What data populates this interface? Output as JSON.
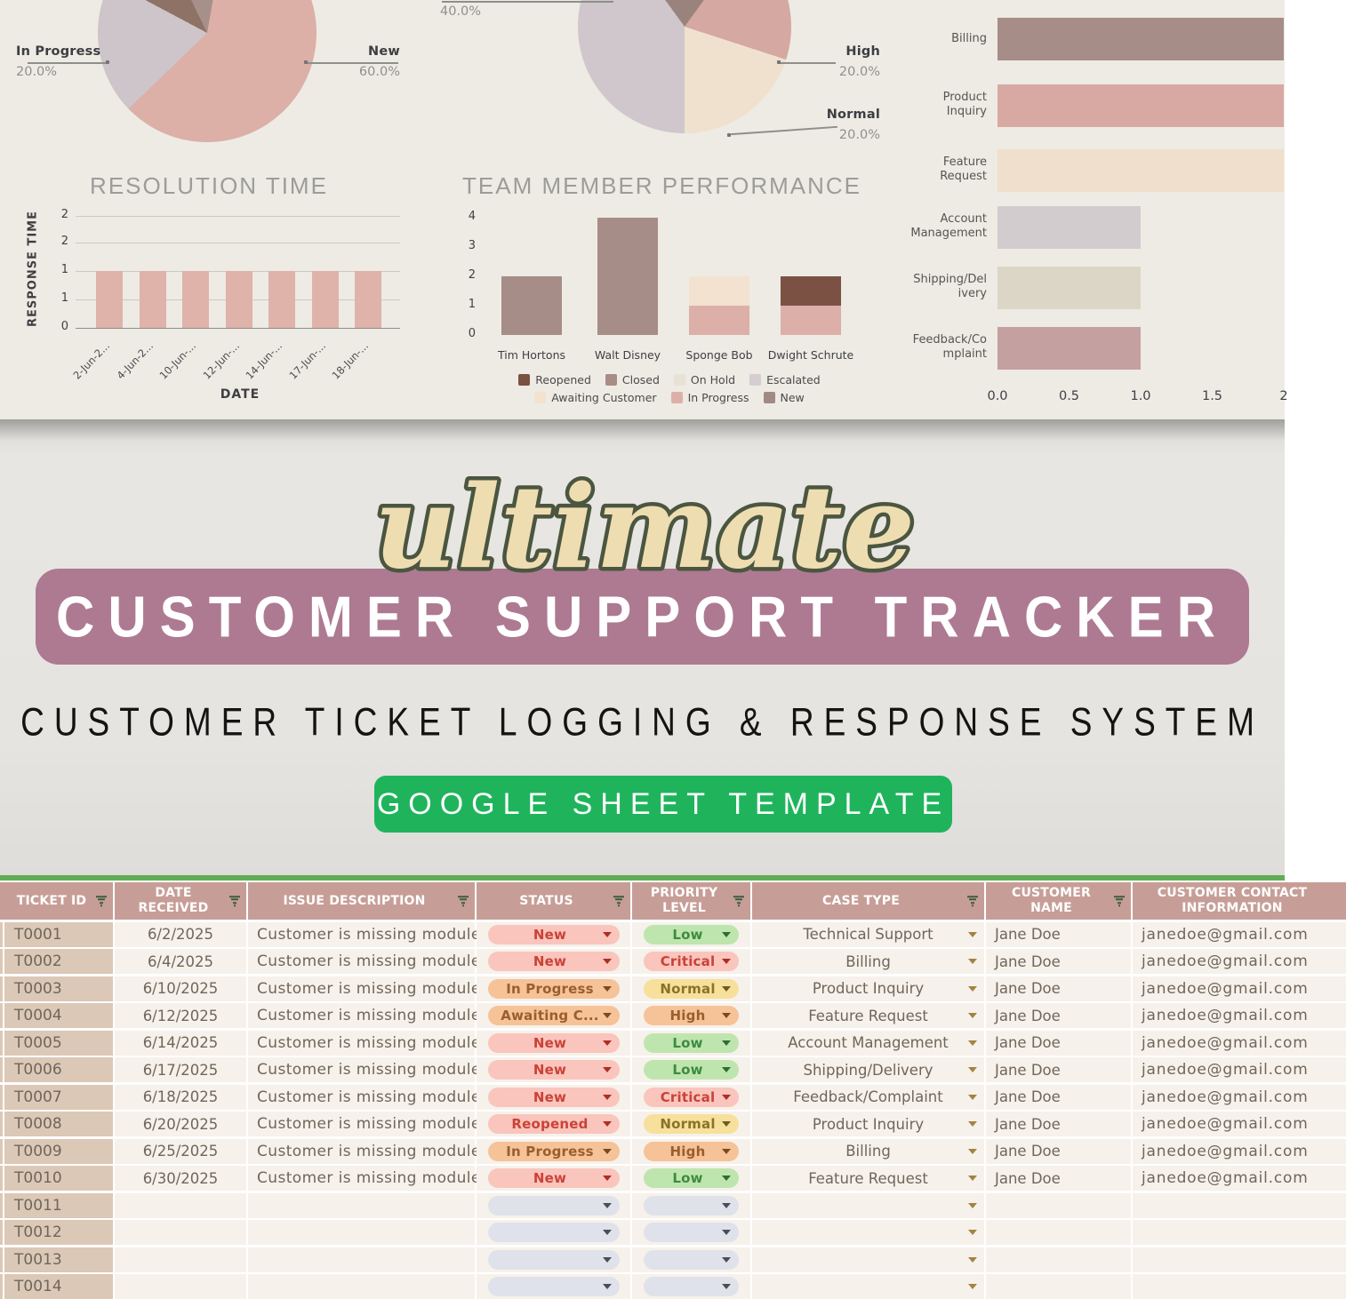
{
  "hero": {
    "script_word": "ultimate",
    "banner_title": "CUSTOMER SUPPORT TRACKER",
    "subtitle": "CUSTOMER TICKET LOGGING & RESPONSE SYSTEM",
    "button_label": "GOOGLE SHEET TEMPLATE",
    "colors": {
      "banner_bg": "#ad7a92",
      "script_fill": "#efddb2",
      "script_stroke": "#4b5640",
      "button_bg": "#1fb45c",
      "subtitle_text": "#141414"
    }
  },
  "chart_data": [
    {
      "type": "pie",
      "name": "ticket-status-distribution",
      "slices": [
        {
          "label": "New",
          "pct": 60,
          "color": "#dcafa7"
        },
        {
          "label": "In Progress",
          "pct": 20,
          "color": "#cdc5c9"
        },
        {
          "label": "",
          "pct": 10,
          "color": "#8d7265"
        },
        {
          "label": "",
          "pct": 10,
          "color": "#a79089"
        }
      ],
      "callouts": [
        {
          "label": "In Progress",
          "pct": "20.0%"
        },
        {
          "label": "New",
          "pct": "60.0%"
        }
      ]
    },
    {
      "type": "bar",
      "title": "RESOLUTION TIME",
      "xlabel": "DATE",
      "ylabel": "RESPONSE TIME",
      "x": [
        "2-Jun-2...",
        "4-Jun-2...",
        "10-Jun-...",
        "12-Jun-...",
        "14-Jun-...",
        "17-Jun-...",
        "18-Jun-..."
      ],
      "values": [
        1,
        1,
        1,
        1,
        1,
        1,
        1
      ],
      "yticks": [
        "2",
        "2",
        "1",
        "1",
        "0"
      ],
      "ylim": [
        0,
        2
      ],
      "bar_color": "#dfb2aa"
    },
    {
      "type": "pie",
      "name": "priority-distribution",
      "slices": [
        {
          "label": "",
          "pct": 20,
          "color": "#9b837d"
        },
        {
          "label": "High",
          "pct": 20,
          "color": "#d5a8a2"
        },
        {
          "label": "Normal",
          "pct": 20,
          "color": "#f0e1ce"
        },
        {
          "label": "",
          "pct": 40,
          "color": "#cfc7cb"
        }
      ],
      "callouts": [
        {
          "label": "",
          "pct": "40.0%"
        },
        {
          "label": "High",
          "pct": "20.0%"
        },
        {
          "label": "Normal",
          "pct": "20.0%"
        }
      ]
    },
    {
      "type": "stacked-bar",
      "title": "TEAM MEMBER PERFORMANCE",
      "categories": [
        "Tim Hortons",
        "Walt Disney",
        "Sponge Bob",
        "Dwight Schrute"
      ],
      "yticks": [
        "4",
        "3",
        "2",
        "1",
        "0"
      ],
      "ylim": [
        0,
        4
      ],
      "bars": [
        [
          {
            "status": "Closed",
            "value": 2
          }
        ],
        [
          {
            "status": "Closed",
            "value": 4
          }
        ],
        [
          {
            "status": "In Progress",
            "value": 1
          },
          {
            "status": "Awaiting Customer",
            "value": 1
          }
        ],
        [
          {
            "status": "In Progress",
            "value": 1
          },
          {
            "status": "Reopened",
            "value": 1
          }
        ]
      ],
      "legend": [
        "Reopened",
        "Closed",
        "On Hold",
        "Escalated",
        "Awaiting Customer",
        "In Progress",
        "New"
      ]
    },
    {
      "type": "hbar",
      "name": "tickets-by-case-type",
      "categories": [
        [
          "Billing"
        ],
        [
          "Product",
          "Inquiry"
        ],
        [
          "Feature",
          "Request"
        ],
        [
          "Account",
          "Management"
        ],
        [
          "Shipping/Del",
          "ivery"
        ],
        [
          "Feedback/Co",
          "mplaint"
        ]
      ],
      "values": [
        2,
        2,
        2,
        1,
        1,
        1
      ],
      "colors": [
        "#a78d87",
        "#d8a9a3",
        "#f0dfcc",
        "#d3ccce",
        "#dcd6c6",
        "#c5a0a0"
      ],
      "xticks": [
        "0.0",
        "0.5",
        "1.0",
        "1.5",
        "2"
      ],
      "xlim": [
        0,
        2
      ]
    }
  ],
  "dashboard_colors": {
    "background": "#edebe4",
    "status_colors": {
      "Reopened": "#7a5143",
      "Closed": "#a78d87",
      "On Hold": "#e8e2d6",
      "Escalated": "#d5cdd1",
      "Awaiting Customer": "#f2e2cf",
      "In Progress": "#dcb0a8",
      "New": "#a18a84"
    }
  },
  "sheet": {
    "columns": [
      "TICKET ID",
      "DATE\nRECEIVED",
      "ISSUE DESCRIPTION",
      "STATUS",
      "PRIORITY\nLEVEL",
      "CASE TYPE",
      "CUSTOMER\nNAME",
      "CUSTOMER CONTACT\nINFORMATION"
    ],
    "rows": [
      {
        "id": "T0001",
        "date": "6/2/2025",
        "desc": "Customer is missing module",
        "status": "New",
        "status_color": "red",
        "priority": "Low",
        "priority_color": "green",
        "case": "Technical Support",
        "name": "Jane Doe",
        "email": "janedoe@gmail.com"
      },
      {
        "id": "T0002",
        "date": "6/4/2025",
        "desc": "Customer is missing module",
        "status": "New",
        "status_color": "red",
        "priority": "Critical",
        "priority_color": "red",
        "case": "Billing",
        "name": "Jane Doe",
        "email": "janedoe@gmail.com"
      },
      {
        "id": "T0003",
        "date": "6/10/2025",
        "desc": "Customer is missing module",
        "status": "In Progress",
        "status_color": "orange",
        "priority": "Normal",
        "priority_color": "yellow",
        "case": "Product Inquiry",
        "name": "Jane Doe",
        "email": "janedoe@gmail.com"
      },
      {
        "id": "T0004",
        "date": "6/12/2025",
        "desc": "Customer is missing module",
        "status": "Awaiting C...",
        "status_color": "orange",
        "priority": "High",
        "priority_color": "orange",
        "case": "Feature Request",
        "name": "Jane Doe",
        "email": "janedoe@gmail.com"
      },
      {
        "id": "T0005",
        "date": "6/14/2025",
        "desc": "Customer is missing module",
        "status": "New",
        "status_color": "red",
        "priority": "Low",
        "priority_color": "green",
        "case": "Account Management",
        "name": "Jane Doe",
        "email": "janedoe@gmail.com"
      },
      {
        "id": "T0006",
        "date": "6/17/2025",
        "desc": "Customer is missing module",
        "status": "New",
        "status_color": "red",
        "priority": "Low",
        "priority_color": "green",
        "case": "Shipping/Delivery",
        "name": "Jane Doe",
        "email": "janedoe@gmail.com"
      },
      {
        "id": "T0007",
        "date": "6/18/2025",
        "desc": "Customer is missing module",
        "status": "New",
        "status_color": "red",
        "priority": "Critical",
        "priority_color": "red",
        "case": "Feedback/Complaint",
        "name": "Jane Doe",
        "email": "janedoe@gmail.com"
      },
      {
        "id": "T0008",
        "date": "6/20/2025",
        "desc": "Customer is missing module",
        "status": "Reopened",
        "status_color": "red",
        "priority": "Normal",
        "priority_color": "yellow",
        "case": "Product Inquiry",
        "name": "Jane Doe",
        "email": "janedoe@gmail.com"
      },
      {
        "id": "T0009",
        "date": "6/25/2025",
        "desc": "Customer is missing module",
        "status": "In Progress",
        "status_color": "orange",
        "priority": "High",
        "priority_color": "orange",
        "case": "Billing",
        "name": "Jane Doe",
        "email": "janedoe@gmail.com"
      },
      {
        "id": "T0010",
        "date": "6/30/2025",
        "desc": "Customer is missing module",
        "status": "New",
        "status_color": "red",
        "priority": "Low",
        "priority_color": "green",
        "case": "Feature Request",
        "name": "Jane Doe",
        "email": "janedoe@gmail.com"
      }
    ],
    "empty_ids": [
      "T0011",
      "T0012",
      "T0013",
      "T0014"
    ],
    "colors": {
      "header_bg": "#c79e97",
      "header_text": "#ffffff",
      "filter_icon": "#3f5a43",
      "topbar_green": "#5fad55",
      "ticket_cell_bg": "#dcc8b6",
      "cell_bg": "#f6f1ea",
      "cell_text": "#6f665c",
      "case_caret": "#a3833f",
      "pills": {
        "red": {
          "bg": "#f9c5bd",
          "text": "#cb4237",
          "caret": "#ae2e24"
        },
        "orange": {
          "bg": "#f6c298",
          "text": "#9a5e2d",
          "caret": "#7d4a20"
        },
        "green": {
          "bg": "#bfe5ae",
          "text": "#3d8b40",
          "caret": "#2e6d31"
        },
        "yellow": {
          "bg": "#f7e09c",
          "text": "#8a7324",
          "caret": "#6e5c1c"
        },
        "empty": {
          "bg": "#dfe2ea",
          "caret": "#4a4f57"
        }
      }
    }
  }
}
